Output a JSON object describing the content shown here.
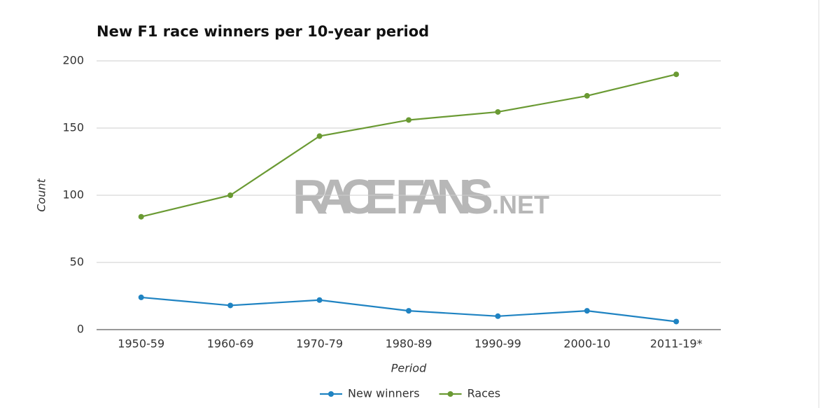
{
  "chart_data": {
    "type": "line",
    "title": "New F1 race winners per 10-year period",
    "x_label": "Period",
    "y_label": "Count",
    "watermark": [
      "RACE",
      "FANS",
      ".NET"
    ],
    "categories": [
      "1950-59",
      "1960-69",
      "1970-79",
      "1980-89",
      "1990-99",
      "2000-10",
      "2011-19*"
    ],
    "series": [
      {
        "name": "New winners",
        "color": "#1f83c2",
        "values": [
          24,
          18,
          22,
          14,
          10,
          14,
          6
        ]
      },
      {
        "name": "Races",
        "color": "#6a9a33",
        "values": [
          84,
          100,
          144,
          156,
          162,
          174,
          190
        ]
      }
    ],
    "ylim": [
      0,
      200
    ],
    "yticks": [
      0,
      50,
      100,
      150,
      200
    ],
    "grid": true,
    "legend": "bottom"
  }
}
